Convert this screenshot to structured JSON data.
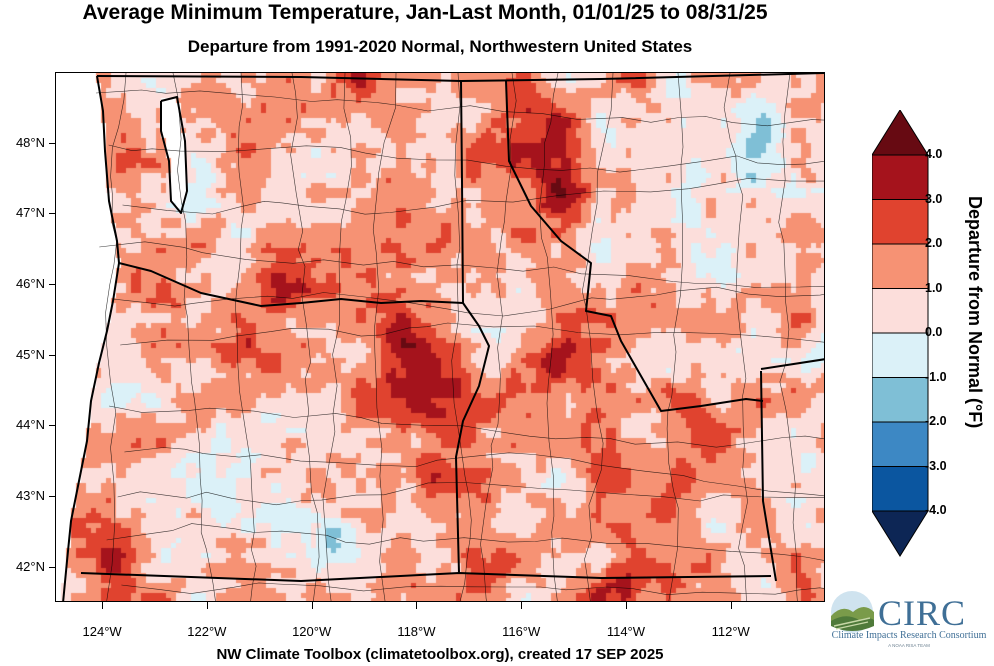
{
  "title": "Average Minimum Temperature, Jan-Last Month, 01/01/25 to 08/31/25",
  "subtitle": "Departure from 1991-2020 Normal, Northwestern United States",
  "footer": "NW Climate Toolbox (climatetoolbox.org), created 17 SEP 2025",
  "map": {
    "region": "Northwestern United States",
    "lon_range": [
      -124.9,
      -110.2
    ],
    "lat_range": [
      41.5,
      49.0
    ],
    "lat_labels": [
      "42°N",
      "43°N",
      "44°N",
      "45°N",
      "46°N",
      "47°N",
      "48°N"
    ],
    "lat_values": [
      42,
      43,
      44,
      45,
      46,
      47,
      48
    ],
    "lon_labels": [
      "124°W",
      "122°W",
      "120°W",
      "118°W",
      "116°W",
      "114°W",
      "112°W"
    ],
    "lon_values": [
      -124,
      -122,
      -120,
      -118,
      -116,
      -114,
      -112
    ],
    "boundary_color": "#000000"
  },
  "legend": {
    "title": "Departure from Normal (°F)",
    "levels": [
      "4.0",
      "3.0",
      "2.0",
      "1.0",
      "0.0",
      "-1.0",
      "-2.0",
      "-3.0",
      "-4.0"
    ],
    "colors": [
      "#670a12",
      "#a5131c",
      "#e0432f",
      "#f69274",
      "#fcdedb",
      "#dbf1f8",
      "#7fbfd6",
      "#3d88c4",
      "#0b56a0",
      "#0d2655"
    ]
  },
  "logo": {
    "name": "CIRC",
    "subtitle": "Climate Impacts Research Consortium",
    "tagline": "A NOAA RISA TEAM",
    "colors": {
      "text": "#3f6f96",
      "hills": "#7a9b4a",
      "sky": "#9cc3db"
    }
  }
}
